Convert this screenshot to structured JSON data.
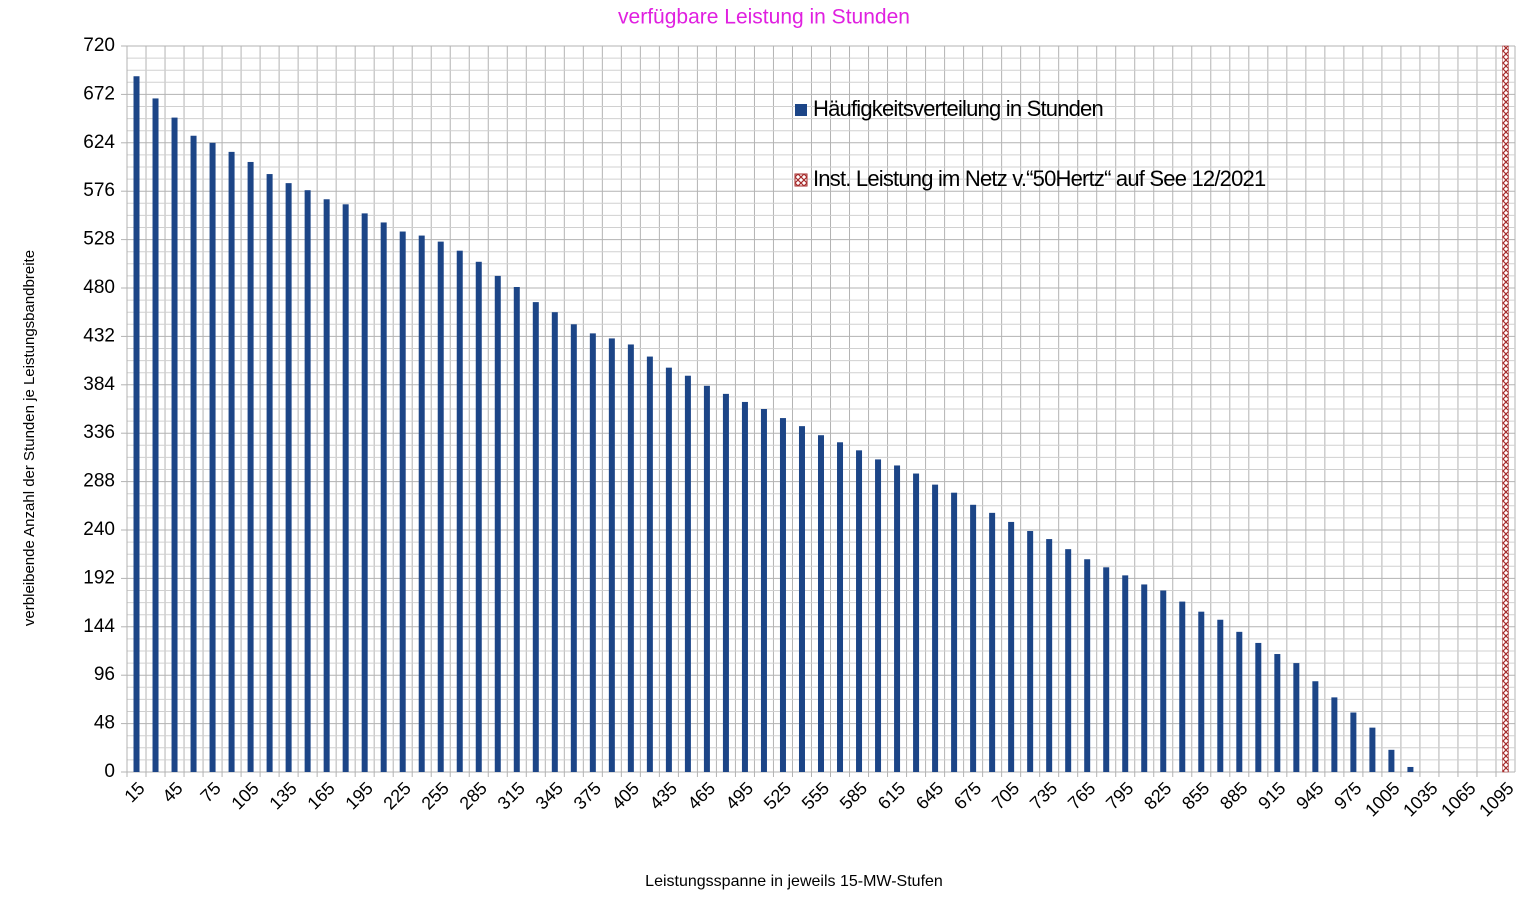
{
  "chart_data": {
    "type": "bar",
    "title": "verfügbare Leistung in Stunden",
    "x_label": "Leistungsspanne in jeweils 15-MW-Stufen",
    "y_label": "verbleibende Anzahl der Stunden je Leistungsbandbreite",
    "categories": [
      "15",
      null,
      "45",
      null,
      "75",
      null,
      "105",
      null,
      "135",
      null,
      "165",
      null,
      "195",
      null,
      "225",
      null,
      "255",
      null,
      "285",
      null,
      "315",
      null,
      "345",
      null,
      "375",
      null,
      "405",
      null,
      "435",
      null,
      "465",
      null,
      "495",
      null,
      "525",
      null,
      "555",
      null,
      "585",
      null,
      "615",
      null,
      "645",
      null,
      "675",
      null,
      "705",
      null,
      "735",
      null,
      "765",
      null,
      "795",
      null,
      "825",
      null,
      "855",
      null,
      "885",
      null,
      "915",
      null,
      "945",
      null,
      "975",
      null,
      "1005",
      null,
      "1035",
      null,
      "1065",
      null,
      "1095"
    ],
    "series": [
      {
        "name": "Häufigkeitsverteilung in Stunden",
        "color": "#1c4587",
        "pattern": "solid",
        "values": [
          690,
          668,
          649,
          631,
          624,
          615,
          605,
          593,
          584,
          577,
          568,
          563,
          554,
          545,
          536,
          532,
          526,
          517,
          506,
          492,
          481,
          466,
          456,
          444,
          435,
          430,
          424,
          412,
          401,
          393,
          383,
          375,
          367,
          360,
          351,
          343,
          334,
          327,
          319,
          310,
          304,
          296,
          285,
          277,
          265,
          257,
          248,
          239,
          231,
          221,
          211,
          203,
          195,
          186,
          180,
          169,
          159,
          151,
          139,
          128,
          117,
          108,
          90,
          74,
          59,
          44,
          22,
          5,
          0,
          0,
          0,
          0,
          null
        ]
      },
      {
        "name": "Inst. Leistung im Netz v.“50Hertz“ auf See 12/2021",
        "color": "#a52a2a",
        "pattern": "crosshatch",
        "values": [
          null,
          null,
          null,
          null,
          null,
          null,
          null,
          null,
          null,
          null,
          null,
          null,
          null,
          null,
          null,
          null,
          null,
          null,
          null,
          null,
          null,
          null,
          null,
          null,
          null,
          null,
          null,
          null,
          null,
          null,
          null,
          null,
          null,
          null,
          null,
          null,
          null,
          null,
          null,
          null,
          null,
          null,
          null,
          null,
          null,
          null,
          null,
          null,
          null,
          null,
          null,
          null,
          null,
          null,
          null,
          null,
          null,
          null,
          null,
          null,
          null,
          null,
          null,
          null,
          null,
          null,
          null,
          null,
          null,
          null,
          null,
          null,
          720
        ]
      }
    ],
    "ylim": [
      0,
      720
    ],
    "yticks": [
      0,
      48,
      96,
      144,
      192,
      240,
      288,
      336,
      384,
      432,
      480,
      528,
      576,
      624,
      672,
      720
    ],
    "grid": true,
    "y_minor_divisions": 4,
    "legend": "top-center",
    "title_color": "#e020e0"
  }
}
